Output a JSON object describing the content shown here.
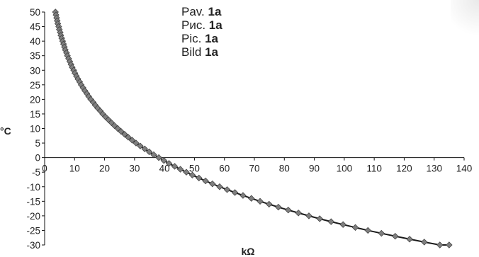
{
  "chart_data": {
    "type": "scatter",
    "title": "",
    "xlabel": "kΩ",
    "ylabel": "°C",
    "xlim": [
      0,
      140
    ],
    "ylim": [
      -30,
      50
    ],
    "x_ticks": [
      "0",
      "10",
      "20",
      "30",
      "40",
      "50",
      "60",
      "70",
      "80",
      "90",
      "100",
      "110",
      "120",
      "130",
      "140"
    ],
    "y_ticks": [
      "50",
      "45",
      "40",
      "35",
      "30",
      "25",
      "20",
      "15",
      "10",
      "5",
      "0",
      "-5",
      "-10",
      "-15",
      "-20",
      "-25",
      "-30"
    ],
    "grid": false,
    "marker": "diamond",
    "marker_color": "#7f7f7f",
    "line_color": "#1a1a1a",
    "annotation_lines": [
      {
        "prefix": "Pav.",
        "bold": "1a"
      },
      {
        "prefix": "Рис.",
        "bold": "1a"
      },
      {
        "prefix": "Pic.",
        "bold": "1a"
      },
      {
        "prefix": "Bild",
        "bold": "1a"
      }
    ],
    "series": [
      {
        "x": [
          3.6,
          3.8,
          4.0,
          4.2,
          4.4,
          4.7,
          4.9,
          5.2,
          5.4,
          5.7,
          6.0,
          6.3,
          6.6,
          6.9,
          7.3,
          7.6,
          8.0,
          8.4,
          8.8,
          9.2,
          9.7,
          10.1,
          10.6,
          11.1,
          11.7,
          12.2,
          12.8,
          13.4,
          14.1,
          14.7,
          15.4,
          16.2,
          16.9,
          17.7,
          18.6,
          19.4,
          20.3,
          21.3,
          22.3,
          23.3,
          24.4,
          25.5,
          26.7,
          27.9,
          29.2,
          30.5,
          31.9,
          33.4,
          34.9,
          36.4,
          38.1,
          39.8,
          41.5,
          43.4,
          45.3,
          47.3,
          49.3,
          51.5,
          53.7,
          56.0,
          58.4,
          60.9,
          63.5,
          66.2,
          69.0,
          71.9,
          74.9,
          78.0,
          81.3,
          84.7,
          88.2,
          91.8,
          95.6,
          99.6,
          103.7,
          107.9,
          112.4,
          117.0,
          121.8,
          126.7,
          131.9,
          135.0
        ],
        "y": [
          50,
          49,
          48,
          47,
          46,
          45,
          44,
          43,
          42,
          41,
          40,
          39,
          38,
          37,
          36,
          35,
          34,
          33,
          32,
          31,
          30,
          29,
          28,
          27,
          26,
          25,
          24,
          23,
          22,
          21,
          20,
          19,
          18,
          17,
          16,
          15,
          14,
          13,
          12,
          11,
          10,
          9,
          8,
          7,
          6,
          5,
          4,
          3,
          2,
          1,
          0,
          -1,
          -2,
          -3,
          -4,
          -5,
          -6,
          -7,
          -8,
          -9,
          -10,
          -11,
          -12,
          -13,
          -14,
          -15,
          -16,
          -17,
          -18,
          -19,
          -20,
          -21,
          -22,
          -23,
          -24,
          -25,
          -26,
          -27,
          -28,
          -29,
          -30,
          -30
        ]
      }
    ]
  }
}
